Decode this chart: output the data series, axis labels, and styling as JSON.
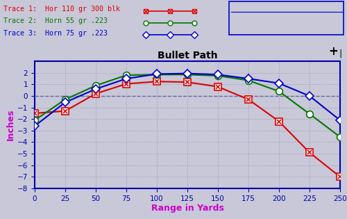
{
  "title": "Bullet Path",
  "xlabel": "Range in Yards",
  "ylabel": "Inches",
  "xlabel_color": "#cc00cc",
  "ylabel_color": "#cc00cc",
  "bg_color": "#c8c8d8",
  "plot_bg_color": "#c8c8d8",
  "xlim": [
    0,
    250
  ],
  "ylim": [
    -8,
    3
  ],
  "yticks": [
    -8,
    -7,
    -6,
    -5,
    -4,
    -3,
    -2,
    -1,
    0,
    1,
    2
  ],
  "xticks": [
    0,
    25,
    50,
    75,
    100,
    125,
    150,
    175,
    200,
    225,
    250
  ],
  "grid_color": "#9999bb",
  "zero_line_color": "#6666aa",
  "trace1_label": "Trace 1:  Hor 110 gr 300 blk",
  "trace2_label": "Trace 2:  Horn 55 gr .223   ",
  "trace3_label": "Trace 3:  Horn 75 gr .223   ",
  "trace1_color": "#dd0000",
  "trace2_color": "#007700",
  "trace3_color": "#0000cc",
  "crosshair_inches": 2.0,
  "crosshair_yards": 250.0,
  "trace1_x": [
    0,
    25,
    50,
    75,
    100,
    125,
    150,
    175,
    200,
    225,
    250
  ],
  "trace1_y": [
    -1.5,
    -1.3,
    0.2,
    1.05,
    1.25,
    1.2,
    0.8,
    -0.3,
    -2.2,
    -4.9,
    -7.0
  ],
  "trace2_x": [
    0,
    25,
    50,
    75,
    100,
    125,
    150,
    175,
    200,
    225,
    250
  ],
  "trace2_y": [
    -2.1,
    -0.3,
    0.9,
    1.8,
    1.85,
    1.85,
    1.75,
    1.35,
    0.4,
    -1.55,
    -3.55
  ],
  "trace3_x": [
    0,
    25,
    50,
    75,
    100,
    125,
    150,
    175,
    200,
    225,
    250
  ],
  "trace3_y": [
    -2.6,
    -0.55,
    0.6,
    1.5,
    1.9,
    1.95,
    1.85,
    1.5,
    1.1,
    0.0,
    -2.1
  ]
}
